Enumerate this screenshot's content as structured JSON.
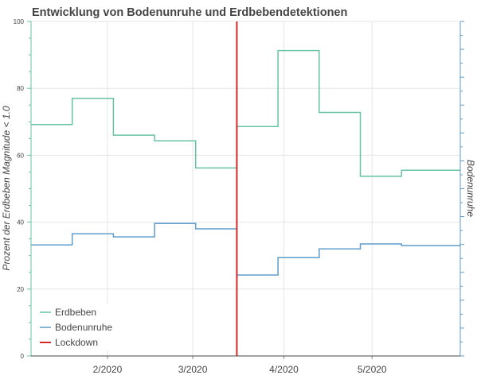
{
  "chart_data": {
    "type": "line",
    "step": true,
    "title": "Entwicklung von Bodenunruhe und Erdbebendetektionen",
    "ylabel": "Prozent der Erdbeben Magnitude < 1.0",
    "y2label": "Bodenunruhe",
    "ylim": [
      0,
      100
    ],
    "yticks": [
      0,
      20,
      40,
      60,
      80,
      100
    ],
    "xlim": [
      "2020-01-06",
      "2020-05-31"
    ],
    "xticks": [
      {
        "date": "2020-02-01",
        "label": "2/2020"
      },
      {
        "date": "2020-03-01",
        "label": "3/2020"
      },
      {
        "date": "2020-04-01",
        "label": "4/2020"
      },
      {
        "date": "2020-05-01",
        "label": "5/2020"
      }
    ],
    "grid": true,
    "legend_position": "bottom-left",
    "series": [
      {
        "name": "Erdbeben",
        "color": "#66c2a5",
        "x": [
          "2020-01-06",
          "2020-01-20",
          "2020-02-03",
          "2020-02-17",
          "2020-03-02",
          "2020-03-16",
          "2020-03-30",
          "2020-04-13",
          "2020-04-27",
          "2020-05-11",
          "2020-05-25"
        ],
        "values": [
          69.2,
          77.0,
          66.0,
          64.3,
          56.2,
          68.6,
          91.3,
          72.8,
          53.7,
          55.5,
          55.5
        ]
      },
      {
        "name": "Bodenunruhe",
        "color": "#5e9ccb",
        "x": [
          "2020-01-06",
          "2020-01-20",
          "2020-02-03",
          "2020-02-17",
          "2020-03-02",
          "2020-03-16",
          "2020-03-30",
          "2020-04-13",
          "2020-04-27",
          "2020-05-11",
          "2020-05-25"
        ],
        "values": [
          33.2,
          36.5,
          35.6,
          39.6,
          38.0,
          24.2,
          29.4,
          32.0,
          33.5,
          33.0,
          33.0
        ]
      }
    ],
    "vlines": [
      {
        "name": "Lockdown",
        "date": "2020-03-16",
        "color": "#d62728"
      }
    ]
  }
}
